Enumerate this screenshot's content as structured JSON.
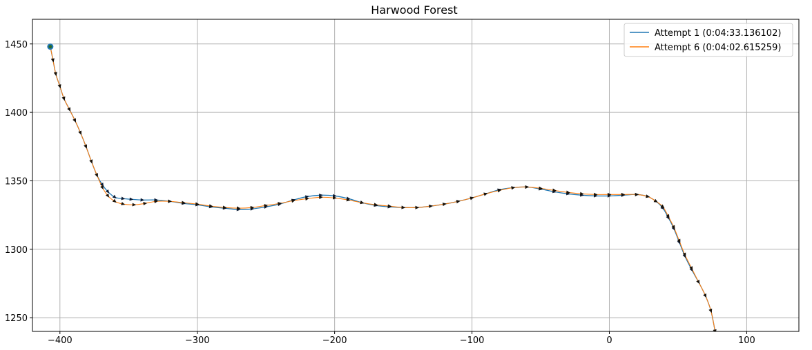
{
  "chart_data": {
    "type": "line",
    "title": "Harwood Forest",
    "xlabel": "",
    "ylabel": "",
    "xlim": [
      -420,
      138
    ],
    "ylim": [
      1240,
      1468
    ],
    "grid": true,
    "legend_position": "top-right",
    "x_ticks": [
      -400,
      -300,
      -200,
      -100,
      0,
      100
    ],
    "x_tick_labels": [
      "−400",
      "−300",
      "−200",
      "−100",
      "0",
      "100"
    ],
    "y_ticks": [
      1250,
      1300,
      1350,
      1400,
      1450
    ],
    "y_tick_labels": [
      "1250",
      "1300",
      "1350",
      "1400",
      "1450"
    ],
    "start_point": {
      "x": -407,
      "y": 1448
    },
    "series": [
      {
        "name": "Attempt 1 (0:04:33.136102)",
        "color": "#1f77b4",
        "points": [
          [
            -407,
            1448
          ],
          [
            -405,
            1438
          ],
          [
            -403,
            1428
          ],
          [
            -400,
            1419
          ],
          [
            -397,
            1410
          ],
          [
            -393,
            1402
          ],
          [
            -389,
            1394
          ],
          [
            -385,
            1385
          ],
          [
            -381,
            1375
          ],
          [
            -377,
            1364
          ],
          [
            -373,
            1354
          ],
          [
            -369,
            1347
          ],
          [
            -365,
            1342
          ],
          [
            -360,
            1338
          ],
          [
            -354,
            1337
          ],
          [
            -348,
            1336.5
          ],
          [
            -340,
            1336
          ],
          [
            -330,
            1336
          ],
          [
            -320,
            1335
          ],
          [
            -310,
            1333.5
          ],
          [
            -300,
            1332.5
          ],
          [
            -290,
            1331
          ],
          [
            -280,
            1330
          ],
          [
            -270,
            1329
          ],
          [
            -260,
            1329.5
          ],
          [
            -250,
            1331
          ],
          [
            -240,
            1333
          ],
          [
            -230,
            1336
          ],
          [
            -220,
            1338.5
          ],
          [
            -210,
            1339.5
          ],
          [
            -200,
            1339
          ],
          [
            -190,
            1337
          ],
          [
            -180,
            1334
          ],
          [
            -170,
            1332
          ],
          [
            -160,
            1331
          ],
          [
            -150,
            1330.5
          ],
          [
            -140,
            1330.5
          ],
          [
            -130,
            1331.5
          ],
          [
            -120,
            1333
          ],
          [
            -110,
            1335
          ],
          [
            -100,
            1337.5
          ],
          [
            -90,
            1340.5
          ],
          [
            -80,
            1343.5
          ],
          [
            -70,
            1345
          ],
          [
            -60,
            1345.5
          ],
          [
            -50,
            1344
          ],
          [
            -40,
            1342
          ],
          [
            -30,
            1340.5
          ],
          [
            -20,
            1339.5
          ],
          [
            -10,
            1339
          ],
          [
            0,
            1339
          ],
          [
            10,
            1339.5
          ],
          [
            20,
            1340
          ],
          [
            28,
            1338.5
          ],
          [
            34,
            1335
          ],
          [
            39,
            1330
          ],
          [
            43,
            1323
          ],
          [
            47,
            1315
          ],
          [
            51,
            1305
          ],
          [
            55,
            1295
          ],
          [
            60,
            1285
          ],
          [
            65,
            1276
          ],
          [
            70,
            1266
          ],
          [
            74,
            1255
          ],
          [
            77,
            1240
          ]
        ]
      },
      {
        "name": "Attempt 6 (0:04:02.615259)",
        "color": "#ff7f0e",
        "points": [
          [
            -407,
            1448
          ],
          [
            -405,
            1438
          ],
          [
            -403,
            1428
          ],
          [
            -400,
            1419
          ],
          [
            -397,
            1410
          ],
          [
            -393,
            1402
          ],
          [
            -389,
            1394
          ],
          [
            -385,
            1385
          ],
          [
            -381,
            1375
          ],
          [
            -377,
            1364
          ],
          [
            -373,
            1354
          ],
          [
            -369,
            1345
          ],
          [
            -365,
            1339
          ],
          [
            -360,
            1335
          ],
          [
            -354,
            1333
          ],
          [
            -346,
            1332.5
          ],
          [
            -338,
            1333.5
          ],
          [
            -330,
            1335
          ],
          [
            -320,
            1335
          ],
          [
            -310,
            1334
          ],
          [
            -300,
            1333
          ],
          [
            -290,
            1331.5
          ],
          [
            -280,
            1330.5
          ],
          [
            -270,
            1330
          ],
          [
            -260,
            1330.5
          ],
          [
            -250,
            1332
          ],
          [
            -240,
            1333.5
          ],
          [
            -230,
            1335.5
          ],
          [
            -220,
            1337
          ],
          [
            -210,
            1338
          ],
          [
            -200,
            1337.5
          ],
          [
            -190,
            1336
          ],
          [
            -180,
            1334
          ],
          [
            -170,
            1332.5
          ],
          [
            -160,
            1331.5
          ],
          [
            -150,
            1330.5
          ],
          [
            -140,
            1330.5
          ],
          [
            -130,
            1331.5
          ],
          [
            -120,
            1333
          ],
          [
            -110,
            1335
          ],
          [
            -100,
            1337.5
          ],
          [
            -90,
            1340.5
          ],
          [
            -80,
            1343
          ],
          [
            -70,
            1345
          ],
          [
            -60,
            1345.5
          ],
          [
            -50,
            1344.5
          ],
          [
            -40,
            1343
          ],
          [
            -30,
            1341.5
          ],
          [
            -20,
            1340.5
          ],
          [
            -10,
            1340
          ],
          [
            0,
            1340
          ],
          [
            10,
            1340
          ],
          [
            20,
            1340
          ],
          [
            28,
            1338.5
          ],
          [
            34,
            1335
          ],
          [
            39,
            1331
          ],
          [
            43,
            1324
          ],
          [
            47,
            1316
          ],
          [
            51,
            1306
          ],
          [
            55,
            1296
          ],
          [
            60,
            1286
          ],
          [
            65,
            1276
          ],
          [
            70,
            1266
          ],
          [
            74,
            1255
          ],
          [
            77,
            1240
          ]
        ]
      }
    ]
  }
}
